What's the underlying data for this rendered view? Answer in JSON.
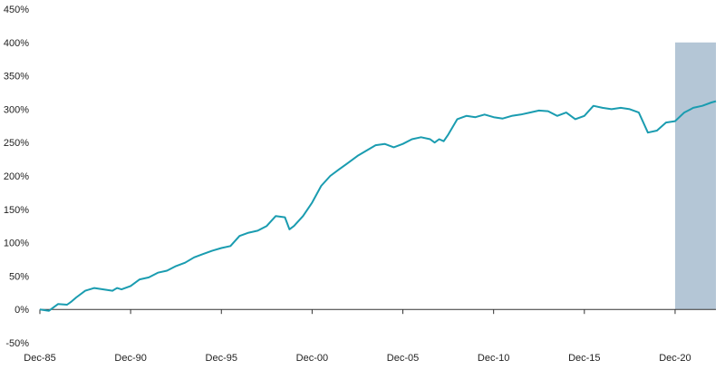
{
  "colors": {
    "line": "#1a9cb0",
    "shade": "#b4c6d6",
    "axis": "#333333",
    "text": "#222222"
  },
  "chart_data": {
    "type": "line",
    "title": "",
    "xlabel": "",
    "ylabel": "",
    "x_axis": {
      "start": "Dec-85",
      "end": "Mar-23",
      "tick_labels": [
        "Dec-85",
        "Dec-90",
        "Dec-95",
        "Dec-00",
        "Dec-05",
        "Dec-10",
        "Dec-15",
        "Dec-20"
      ]
    },
    "y_axis": {
      "ylim": [
        -50,
        450
      ],
      "ticks": [
        -50,
        0,
        50,
        100,
        150,
        200,
        250,
        300,
        350,
        400,
        450
      ],
      "tick_labels": [
        "-50%",
        "0%",
        "50%",
        "100%",
        "150%",
        "200%",
        "250%",
        "300%",
        "350%",
        "400%",
        "450%"
      ]
    },
    "grid": false,
    "shaded_region": {
      "x_start": "Dec-20",
      "x_end": "Mar-23",
      "y_top": 400
    },
    "series": [
      {
        "points": [
          [
            "Dec-85",
            0
          ],
          [
            "Jun-86",
            -2
          ],
          [
            "Dec-86",
            8
          ],
          [
            "Jun-87",
            7
          ],
          [
            "Sep-87",
            12
          ],
          [
            "Dec-87",
            18
          ],
          [
            "Jun-88",
            28
          ],
          [
            "Dec-88",
            32
          ],
          [
            "Jun-89",
            30
          ],
          [
            "Dec-89",
            28
          ],
          [
            "Mar-90",
            32
          ],
          [
            "Jun-90",
            30
          ],
          [
            "Dec-90",
            35
          ],
          [
            "Jun-91",
            45
          ],
          [
            "Dec-91",
            48
          ],
          [
            "Jun-92",
            55
          ],
          [
            "Dec-92",
            58
          ],
          [
            "Jun-93",
            65
          ],
          [
            "Dec-93",
            70
          ],
          [
            "Jun-94",
            78
          ],
          [
            "Dec-94",
            83
          ],
          [
            "Jun-95",
            88
          ],
          [
            "Dec-95",
            92
          ],
          [
            "Jun-96",
            95
          ],
          [
            "Dec-96",
            110
          ],
          [
            "Jun-97",
            115
          ],
          [
            "Dec-97",
            118
          ],
          [
            "Jun-98",
            125
          ],
          [
            "Dec-98",
            140
          ],
          [
            "Jun-99",
            138
          ],
          [
            "Sep-99",
            120
          ],
          [
            "Dec-99",
            125
          ],
          [
            "Jun-00",
            140
          ],
          [
            "Dec-00",
            160
          ],
          [
            "Jun-01",
            185
          ],
          [
            "Dec-01",
            200
          ],
          [
            "Jun-02",
            210
          ],
          [
            "Dec-02",
            220
          ],
          [
            "Jun-03",
            230
          ],
          [
            "Dec-03",
            238
          ],
          [
            "Jun-04",
            246
          ],
          [
            "Dec-04",
            248
          ],
          [
            "Jun-05",
            243
          ],
          [
            "Dec-05",
            248
          ],
          [
            "Jun-06",
            255
          ],
          [
            "Dec-06",
            258
          ],
          [
            "Jun-07",
            255
          ],
          [
            "Sep-07",
            250
          ],
          [
            "Dec-07",
            255
          ],
          [
            "Mar-08",
            252
          ],
          [
            "Jun-08",
            262
          ],
          [
            "Dec-08",
            285
          ],
          [
            "Jun-09",
            290
          ],
          [
            "Dec-09",
            288
          ],
          [
            "Jun-10",
            292
          ],
          [
            "Dec-10",
            288
          ],
          [
            "Jun-11",
            286
          ],
          [
            "Dec-11",
            290
          ],
          [
            "Jun-12",
            292
          ],
          [
            "Dec-12",
            295
          ],
          [
            "Jun-13",
            298
          ],
          [
            "Dec-13",
            297
          ],
          [
            "Jun-14",
            290
          ],
          [
            "Dec-14",
            295
          ],
          [
            "Jun-15",
            285
          ],
          [
            "Dec-15",
            290
          ],
          [
            "Jun-16",
            305
          ],
          [
            "Dec-16",
            302
          ],
          [
            "Jun-17",
            300
          ],
          [
            "Dec-17",
            302
          ],
          [
            "Jun-18",
            300
          ],
          [
            "Dec-18",
            295
          ],
          [
            "Jun-19",
            265
          ],
          [
            "Dec-19",
            268
          ],
          [
            "Jun-20",
            280
          ],
          [
            "Dec-20",
            282
          ],
          [
            "Jun-21",
            295
          ],
          [
            "Dec-21",
            302
          ],
          [
            "Jun-22",
            305
          ],
          [
            "Dec-22",
            310
          ],
          [
            "Mar-23",
            312
          ]
        ]
      }
    ]
  }
}
